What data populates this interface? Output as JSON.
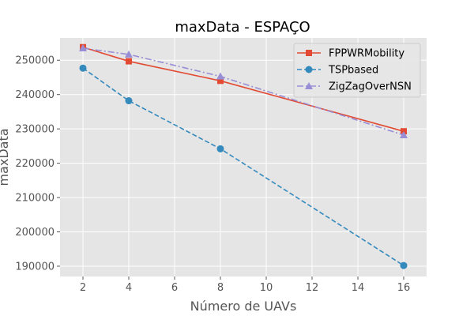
{
  "chart_data": {
    "type": "line",
    "title": "maxData - ESPAÇO",
    "xlabel": "Número de UAVs",
    "ylabel": "maxData",
    "xlim": [
      1,
      17
    ],
    "ylim": [
      187000,
      256500
    ],
    "xticks": [
      2,
      4,
      6,
      8,
      10,
      12,
      14,
      16
    ],
    "yticks": [
      190000,
      200000,
      210000,
      220000,
      230000,
      240000,
      250000
    ],
    "grid": true,
    "legend_position": "top-right",
    "x": [
      2,
      4,
      8,
      16
    ],
    "series": [
      {
        "name": "FPPWRMobility",
        "values": [
          253800,
          249700,
          244000,
          229300
        ],
        "color": "#E24A33",
        "marker": "square",
        "linestyle": "solid"
      },
      {
        "name": "TSPbased",
        "values": [
          247700,
          238200,
          224200,
          190200
        ],
        "color": "#348ABD",
        "marker": "circle",
        "linestyle": "dashed"
      },
      {
        "name": "ZigZagOverNSN",
        "values": [
          253500,
          251700,
          245300,
          228200
        ],
        "color": "#988ED5",
        "marker": "triangle",
        "linestyle": "dashdot"
      }
    ]
  }
}
